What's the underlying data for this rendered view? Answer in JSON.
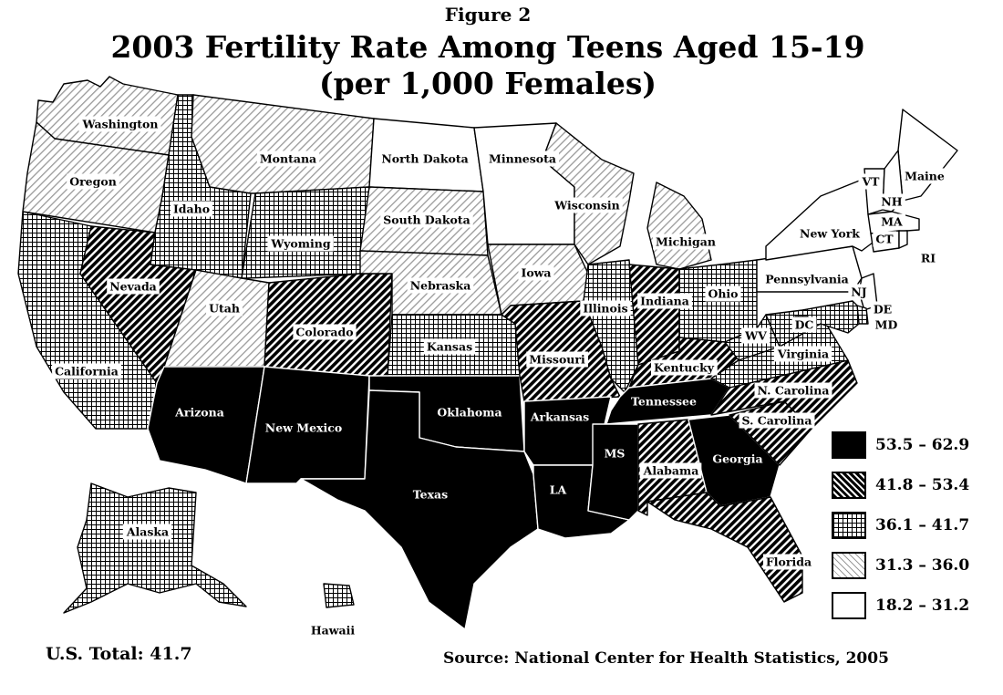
{
  "figure_label": "Figure 2",
  "title_line1": "2003 Fertility Rate Among Teens Aged 15-19",
  "title_line2": "(per 1,000 Females)",
  "us_total": "U.S. Total:  41.7",
  "source": "Source:  National Center for Health Statistics, 2005",
  "legend": [
    {
      "id": "c1",
      "label": "53.5 – 62.9",
      "pattern": "solid-black"
    },
    {
      "id": "c2",
      "label": "41.8 – 53.4",
      "pattern": "dense-diagonal"
    },
    {
      "id": "c3",
      "label": "36.1 – 41.7",
      "pattern": "crosshatch-grid"
    },
    {
      "id": "c4",
      "label": "31.3 – 36.0",
      "pattern": "light-diagonal"
    },
    {
      "id": "c5",
      "label": "18.2 – 31.2",
      "pattern": "white"
    }
  ],
  "states": [
    {
      "label": "Washington",
      "cat": "c4"
    },
    {
      "label": "Oregon",
      "cat": "c4"
    },
    {
      "label": "California",
      "cat": "c3"
    },
    {
      "label": "Idaho",
      "cat": "c3"
    },
    {
      "label": "Nevada",
      "cat": "c2"
    },
    {
      "label": "Montana",
      "cat": "c4"
    },
    {
      "label": "Wyoming",
      "cat": "c3"
    },
    {
      "label": "Utah",
      "cat": "c4"
    },
    {
      "label": "Colorado",
      "cat": "c2"
    },
    {
      "label": "Arizona",
      "cat": "c1"
    },
    {
      "label": "New Mexico",
      "cat": "c1"
    },
    {
      "label": "North Dakota",
      "cat": "c5"
    },
    {
      "label": "South Dakota",
      "cat": "c4"
    },
    {
      "label": "Nebraska",
      "cat": "c4"
    },
    {
      "label": "Kansas",
      "cat": "c3"
    },
    {
      "label": "Oklahoma",
      "cat": "c1"
    },
    {
      "label": "Texas",
      "cat": "c1"
    },
    {
      "label": "Minnesota",
      "cat": "c5"
    },
    {
      "label": "Iowa",
      "cat": "c4"
    },
    {
      "label": "Missouri",
      "cat": "c2"
    },
    {
      "label": "Arkansas",
      "cat": "c1"
    },
    {
      "label": "LA",
      "cat": "c1"
    },
    {
      "label": "Wisconsin",
      "cat": "c4"
    },
    {
      "label": "Illinois",
      "cat": "c3"
    },
    {
      "label": "Michigan",
      "cat": "c4"
    },
    {
      "label": "Indiana",
      "cat": "c2"
    },
    {
      "label": "Ohio",
      "cat": "c3"
    },
    {
      "label": "Kentucky",
      "cat": "c2"
    },
    {
      "label": "Tennessee",
      "cat": "c1"
    },
    {
      "label": "MS",
      "cat": "c1"
    },
    {
      "label": "Alabama",
      "cat": "c2"
    },
    {
      "label": "Georgia",
      "cat": "c1"
    },
    {
      "label": "Florida",
      "cat": "c2"
    },
    {
      "label": "S. Carolina",
      "cat": "c2"
    },
    {
      "label": "N. Carolina",
      "cat": "c2"
    },
    {
      "label": "Virginia",
      "cat": "c3"
    },
    {
      "label": "WV",
      "cat": "c3"
    },
    {
      "label": "Pennsylvania",
      "cat": "c5"
    },
    {
      "label": "New York",
      "cat": "c5"
    },
    {
      "label": "Maine",
      "cat": "c5"
    },
    {
      "label": "VT",
      "cat": "c5"
    },
    {
      "label": "NH",
      "cat": "c5"
    },
    {
      "label": "MA",
      "cat": "c5"
    },
    {
      "label": "CT",
      "cat": "c5"
    },
    {
      "label": "RI",
      "cat": "c5"
    },
    {
      "label": "NJ",
      "cat": "c5"
    },
    {
      "label": "DE",
      "cat": "c3"
    },
    {
      "label": "MD",
      "cat": "c3"
    },
    {
      "label": "DC",
      "cat": "c3"
    },
    {
      "label": "Alaska",
      "cat": "c3"
    },
    {
      "label": "Hawaii",
      "cat": "c3"
    }
  ]
}
